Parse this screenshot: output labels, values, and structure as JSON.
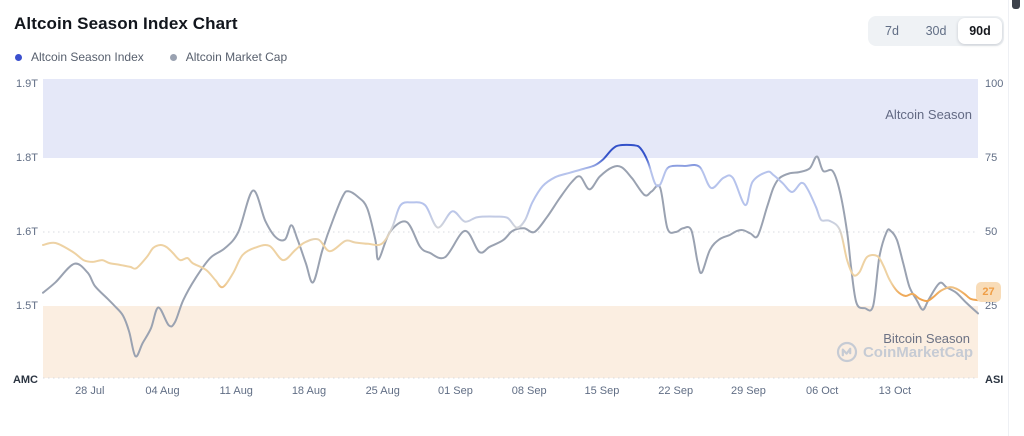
{
  "header": {
    "title": "Altcoin Season Index Chart"
  },
  "legend": {
    "items": [
      {
        "label": "Altcoin Season Index",
        "color": "#3b50ce"
      },
      {
        "label": "Altcoin Market Cap",
        "color": "#9aa2b1"
      }
    ]
  },
  "range_selector": {
    "options": [
      "7d",
      "30d",
      "90d"
    ],
    "active": "90d"
  },
  "watermark": {
    "text": "CoinMarketCap",
    "color": "#c6cbd4"
  },
  "chart_data": {
    "type": "line",
    "title": "Altcoin Season Index Chart",
    "day_span": 90,
    "x_ticks": [
      {
        "label": "28 Jul",
        "day": 4.5
      },
      {
        "label": "04 Aug",
        "day": 11.5
      },
      {
        "label": "11 Aug",
        "day": 18.6
      },
      {
        "label": "18 Aug",
        "day": 25.6
      },
      {
        "label": "25 Aug",
        "day": 32.7
      },
      {
        "label": "01 Sep",
        "day": 39.7
      },
      {
        "label": "08 Sep",
        "day": 46.8
      },
      {
        "label": "15 Sep",
        "day": 53.8
      },
      {
        "label": "22 Sep",
        "day": 60.9
      },
      {
        "label": "29 Sep",
        "day": 67.9
      },
      {
        "label": "06 Oct",
        "day": 75.0
      },
      {
        "label": "13 Oct",
        "day": 82.0
      }
    ],
    "left_axis": {
      "label": "AMC",
      "ticks": [
        {
          "text": "1.9T",
          "asi_pos": 100
        },
        {
          "text": "1.8T",
          "asi_pos": 75
        },
        {
          "text": "1.6T",
          "asi_pos": 50
        },
        {
          "text": "1.5T",
          "asi_pos": 25
        }
      ],
      "amc_anchors": [
        [
          1.5,
          25
        ],
        [
          1.6,
          50
        ],
        [
          1.8,
          75
        ],
        [
          1.9,
          100
        ]
      ]
    },
    "right_axis": {
      "label": "ASI",
      "ticks": [
        {
          "text": "100",
          "asi_pos": 100
        },
        {
          "text": "75",
          "asi_pos": 75
        },
        {
          "text": "50",
          "asi_pos": 50
        },
        {
          "text": "25",
          "asi_pos": 25
        }
      ]
    },
    "zones": [
      {
        "label": "Altcoin Season",
        "from": 75,
        "to": "top",
        "color": "#e5e8f8",
        "label_color": "#636a84"
      },
      {
        "label": "Bitcoin Season",
        "from": "bottom",
        "to": 25,
        "color": "#fbeee1",
        "label_color": "#6c7284"
      }
    ],
    "gridlines_asi": [
      50
    ],
    "current_value": {
      "text": "27",
      "asi_pos": 27,
      "text_color": "#ef9e46",
      "bg_color": "#f8dcb8"
    },
    "series": [
      {
        "name": "Altcoin Season Index",
        "axis": "asi",
        "width": 2,
        "color_stops": [
          [
            25,
            "#ef9d43"
          ],
          [
            29,
            "#efab5c"
          ],
          [
            33,
            "#eed2a3"
          ],
          [
            46,
            "#eed2a3"
          ],
          [
            52,
            "#cfd3dc"
          ],
          [
            58,
            "#b6c3ec"
          ],
          [
            71,
            "#b6c3ec"
          ],
          [
            75.5,
            "#3351c9"
          ],
          [
            100,
            "#3351c9"
          ]
        ],
        "points": [
          [
            0,
            45.6
          ],
          [
            1.2,
            46.3
          ],
          [
            2.9,
            43.2
          ],
          [
            3.9,
            40.5
          ],
          [
            4.8,
            39.9
          ],
          [
            5.7,
            40.5
          ],
          [
            6.4,
            39.5
          ],
          [
            7.4,
            38.9
          ],
          [
            8.4,
            38.2
          ],
          [
            9,
            37.8
          ],
          [
            10,
            41.6
          ],
          [
            10.6,
            44.6
          ],
          [
            11.3,
            45.6
          ],
          [
            11.9,
            44.9
          ],
          [
            12.5,
            42.9
          ],
          [
            13.2,
            40.5
          ],
          [
            13.9,
            41.2
          ],
          [
            14.4,
            39.5
          ],
          [
            15.7,
            37.2
          ],
          [
            16.6,
            33.7
          ],
          [
            17.3,
            31.4
          ],
          [
            18.3,
            36.1
          ],
          [
            19.2,
            42.2
          ],
          [
            20.5,
            44.8
          ],
          [
            21.8,
            45.3
          ],
          [
            23.1,
            40.5
          ],
          [
            24.3,
            44
          ],
          [
            25.2,
            46.5
          ],
          [
            26.5,
            47.5
          ],
          [
            27.6,
            43.5
          ],
          [
            29.1,
            47
          ],
          [
            30,
            46.5
          ],
          [
            31.3,
            46
          ],
          [
            32.6,
            46
          ],
          [
            33.6,
            51.5
          ],
          [
            34.4,
            59
          ],
          [
            35.5,
            60
          ],
          [
            36.8,
            59
          ],
          [
            38,
            51.5
          ],
          [
            39.4,
            57
          ],
          [
            40.6,
            53.5
          ],
          [
            41.8,
            55
          ],
          [
            43.5,
            55.2
          ],
          [
            44.7,
            54.8
          ],
          [
            45.6,
            51.5
          ],
          [
            46.4,
            54
          ],
          [
            47.1,
            60
          ],
          [
            48.1,
            65.5
          ],
          [
            49.3,
            68.5
          ],
          [
            50.7,
            70
          ],
          [
            52,
            71.3
          ],
          [
            53.1,
            72.5
          ],
          [
            53.9,
            74.5
          ],
          [
            54.8,
            78
          ],
          [
            55.5,
            79.3
          ],
          [
            56.9,
            79.3
          ],
          [
            57.5,
            78.3
          ],
          [
            58.2,
            74
          ],
          [
            58.9,
            66.5
          ],
          [
            59.4,
            66
          ],
          [
            60,
            71
          ],
          [
            60.6,
            72.3
          ],
          [
            61.8,
            72.3
          ],
          [
            63.2,
            72
          ],
          [
            64.3,
            64.9
          ],
          [
            65.5,
            68.3
          ],
          [
            66.4,
            68.3
          ],
          [
            67.6,
            59.1
          ],
          [
            68.3,
            67
          ],
          [
            69.7,
            70.3
          ],
          [
            70.3,
            69.3
          ],
          [
            71.2,
            66.5
          ],
          [
            72.1,
            63.5
          ],
          [
            73,
            66.6
          ],
          [
            73.6,
            64.5
          ],
          [
            74.4,
            58.5
          ],
          [
            74.9,
            54.1
          ],
          [
            75.7,
            53.8
          ],
          [
            76.7,
            50.7
          ],
          [
            77.4,
            40.5
          ],
          [
            78,
            35.5
          ],
          [
            78.6,
            36.5
          ],
          [
            79.3,
            41.5
          ],
          [
            80.3,
            41.9
          ],
          [
            80.9,
            38.5
          ],
          [
            81.5,
            33.8
          ],
          [
            82.2,
            30.1
          ],
          [
            83,
            28.4
          ],
          [
            83.7,
            29.1
          ],
          [
            84.4,
            27.4
          ],
          [
            85.1,
            26.7
          ],
          [
            85.7,
            28
          ],
          [
            86.4,
            30.1
          ],
          [
            87.3,
            31.4
          ],
          [
            88,
            30.7
          ],
          [
            88.7,
            29.1
          ],
          [
            89.3,
            27.4
          ],
          [
            90,
            27
          ]
        ]
      },
      {
        "name": "Altcoin Market Cap",
        "axis": "amc",
        "width": 2,
        "color": "#9aa2b1",
        "points": [
          [
            0,
            1.518
          ],
          [
            1.2,
            1.532
          ],
          [
            3,
            1.557
          ],
          [
            4.3,
            1.545
          ],
          [
            5,
            1.527
          ],
          [
            6.2,
            1.51
          ],
          [
            6.9,
            1.5
          ],
          [
            7.7,
            1.487
          ],
          [
            8.3,
            1.465
          ],
          [
            8.9,
            1.432
          ],
          [
            9.6,
            1.45
          ],
          [
            10.4,
            1.47
          ],
          [
            11.1,
            1.498
          ],
          [
            12.1,
            1.474
          ],
          [
            12.7,
            1.478
          ],
          [
            13.5,
            1.508
          ],
          [
            14.7,
            1.538
          ],
          [
            16.1,
            1.565
          ],
          [
            17.5,
            1.578
          ],
          [
            18.8,
            1.6
          ],
          [
            20.2,
            1.712
          ],
          [
            21.4,
            1.63
          ],
          [
            22.4,
            1.593
          ],
          [
            23.3,
            1.59
          ],
          [
            23.9,
            1.618
          ],
          [
            24.5,
            1.59
          ],
          [
            25.3,
            1.558
          ],
          [
            26,
            1.532
          ],
          [
            26.9,
            1.576
          ],
          [
            27.9,
            1.632
          ],
          [
            28.9,
            1.699
          ],
          [
            29.4,
            1.71
          ],
          [
            30.3,
            1.695
          ],
          [
            31.2,
            1.665
          ],
          [
            32,
            1.589
          ],
          [
            32.3,
            1.563
          ],
          [
            33.4,
            1.6
          ],
          [
            35,
            1.627
          ],
          [
            36.3,
            1.58
          ],
          [
            37.2,
            1.572
          ],
          [
            38.7,
            1.566
          ],
          [
            40.6,
            1.603
          ],
          [
            42,
            1.573
          ],
          [
            43,
            1.58
          ],
          [
            44.3,
            1.589
          ],
          [
            45.2,
            1.603
          ],
          [
            46.3,
            1.61
          ],
          [
            47.3,
            1.6
          ],
          [
            48.5,
            1.64
          ],
          [
            49.7,
            1.69
          ],
          [
            50.9,
            1.735
          ],
          [
            51.7,
            1.75
          ],
          [
            52.6,
            1.715
          ],
          [
            53.6,
            1.75
          ],
          [
            54.8,
            1.775
          ],
          [
            55.7,
            1.775
          ],
          [
            56.7,
            1.745
          ],
          [
            57.9,
            1.7
          ],
          [
            58.6,
            1.71
          ],
          [
            59.4,
            1.72
          ],
          [
            60.1,
            1.61
          ],
          [
            60.9,
            1.6
          ],
          [
            61.6,
            1.61
          ],
          [
            62.4,
            1.605
          ],
          [
            63,
            1.56
          ],
          [
            63.4,
            1.545
          ],
          [
            64.2,
            1.576
          ],
          [
            65.1,
            1.59
          ],
          [
            66.1,
            1.596
          ],
          [
            66.8,
            1.603
          ],
          [
            67.4,
            1.605
          ],
          [
            68.1,
            1.598
          ],
          [
            68.8,
            1.595
          ],
          [
            69.7,
            1.668
          ],
          [
            70.3,
            1.719
          ],
          [
            70.9,
            1.746
          ],
          [
            71.9,
            1.759
          ],
          [
            72.8,
            1.762
          ],
          [
            73.8,
            1.772
          ],
          [
            74.5,
            1.802
          ],
          [
            75.1,
            1.765
          ],
          [
            76,
            1.765
          ],
          [
            76.7,
            1.71
          ],
          [
            77.4,
            1.6
          ],
          [
            77.8,
            1.55
          ],
          [
            78.3,
            1.504
          ],
          [
            79.1,
            1.497
          ],
          [
            79.9,
            1.5
          ],
          [
            80.5,
            1.566
          ],
          [
            81.2,
            1.6
          ],
          [
            81.6,
            1.603
          ],
          [
            82.2,
            1.589
          ],
          [
            82.8,
            1.558
          ],
          [
            83.4,
            1.526
          ],
          [
            84.1,
            1.508
          ],
          [
            84.7,
            1.495
          ],
          [
            85.3,
            1.51
          ],
          [
            86.3,
            1.531
          ],
          [
            87,
            1.525
          ],
          [
            87.9,
            1.518
          ],
          [
            88.9,
            1.504
          ],
          [
            90,
            1.49
          ]
        ]
      }
    ]
  }
}
